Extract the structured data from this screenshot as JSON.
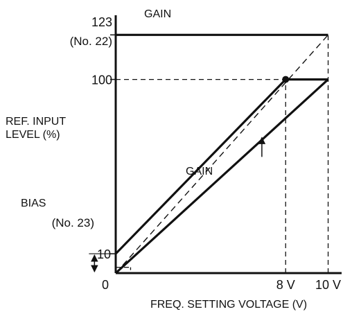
{
  "chart_data": {
    "type": "line",
    "xlabel": "FREQ. SETTING VOLTAGE (V)",
    "ylabel": "REF. INPUT LEVEL (%)",
    "ylabel_line1": "REF. INPUT",
    "ylabel_line2": "LEVEL (%)",
    "x_ticks": [
      {
        "value": 0,
        "label": "0"
      },
      {
        "value": 8,
        "label": "8 V"
      },
      {
        "value": 10,
        "label": "10 V"
      }
    ],
    "y_ticks": [
      {
        "value": 10,
        "label": "10"
      },
      {
        "value": 100,
        "label": "100"
      },
      {
        "value": 123,
        "label": "123"
      }
    ],
    "y_tick_123_sub": "(No. 22)",
    "xlim": [
      0,
      10.7
    ],
    "ylim": [
      0,
      136
    ],
    "series": [
      {
        "style": "solid",
        "x": [
          0,
          8,
          10
        ],
        "y": [
          10,
          100,
          100
        ]
      },
      {
        "style": "solid",
        "x": [
          0,
          10
        ],
        "y": [
          0,
          100
        ]
      },
      {
        "style": "solid",
        "x": [
          0,
          10
        ],
        "y": [
          123,
          123
        ]
      },
      {
        "style": "dashed",
        "x": [
          0,
          10
        ],
        "y": [
          0,
          123
        ]
      }
    ],
    "guides": [
      {
        "x": [
          0,
          8
        ],
        "y": [
          100,
          100
        ]
      },
      {
        "x": [
          8,
          8
        ],
        "y": [
          0,
          100
        ]
      },
      {
        "x": [
          10,
          10
        ],
        "y": [
          0,
          123
        ]
      },
      {
        "x": [
          0,
          0.7
        ],
        "y": [
          3,
          3
        ]
      }
    ],
    "point": {
      "x": 8,
      "y": 100
    },
    "annotations": {
      "gain_top": "GAIN",
      "gain_mid": "GAIN",
      "bias": "BIAS",
      "bias_ref": "(No. 23)"
    },
    "gain_arrow": {
      "x": 6.88,
      "y_from": 60,
      "y_to": 70
    },
    "bias_arrow": {
      "x": -1.0,
      "y_from": 0,
      "y_to": 10
    }
  }
}
